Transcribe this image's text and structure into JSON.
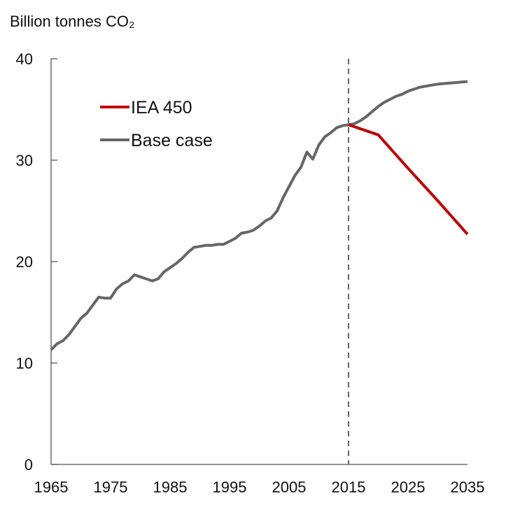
{
  "chart_data": {
    "type": "line",
    "title": "",
    "ylabel": "Billion tonnes CO₂",
    "xlabel": "",
    "xlim": [
      1965,
      2035
    ],
    "ylim": [
      0,
      40
    ],
    "xticks": [
      "1965",
      "1975",
      "1985",
      "1995",
      "2005",
      "2015",
      "2025",
      "2035"
    ],
    "yticks": [
      "0",
      "10",
      "20",
      "30",
      "40"
    ],
    "grid": false,
    "legend_position": "top-left",
    "vertical_reference_line": 2015,
    "series": [
      {
        "name": "IEA 450",
        "color": "#c00000",
        "points": [
          [
            2015,
            33.5
          ],
          [
            2020,
            32.5
          ],
          [
            2025,
            29.2
          ],
          [
            2030,
            26.0
          ],
          [
            2035,
            22.7
          ]
        ]
      },
      {
        "name": "Base case",
        "color": "#666666",
        "points": [
          [
            1965,
            11.3
          ],
          [
            1966,
            11.9
          ],
          [
            1967,
            12.2
          ],
          [
            1968,
            12.8
          ],
          [
            1969,
            13.6
          ],
          [
            1970,
            14.4
          ],
          [
            1971,
            14.9
          ],
          [
            1972,
            15.7
          ],
          [
            1973,
            16.5
          ],
          [
            1974,
            16.4
          ],
          [
            1975,
            16.4
          ],
          [
            1976,
            17.3
          ],
          [
            1977,
            17.8
          ],
          [
            1978,
            18.1
          ],
          [
            1979,
            18.7
          ],
          [
            1980,
            18.5
          ],
          [
            1981,
            18.3
          ],
          [
            1982,
            18.1
          ],
          [
            1983,
            18.3
          ],
          [
            1984,
            19.0
          ],
          [
            1985,
            19.4
          ],
          [
            1986,
            19.8
          ],
          [
            1987,
            20.3
          ],
          [
            1988,
            20.9
          ],
          [
            1989,
            21.4
          ],
          [
            1990,
            21.5
          ],
          [
            1991,
            21.6
          ],
          [
            1992,
            21.6
          ],
          [
            1993,
            21.7
          ],
          [
            1994,
            21.7
          ],
          [
            1995,
            22.0
          ],
          [
            1996,
            22.3
          ],
          [
            1997,
            22.8
          ],
          [
            1998,
            22.9
          ],
          [
            1999,
            23.1
          ],
          [
            2000,
            23.5
          ],
          [
            2001,
            24.0
          ],
          [
            2002,
            24.3
          ],
          [
            2003,
            25.0
          ],
          [
            2004,
            26.3
          ],
          [
            2005,
            27.4
          ],
          [
            2006,
            28.5
          ],
          [
            2007,
            29.3
          ],
          [
            2008,
            30.8
          ],
          [
            2009,
            30.1
          ],
          [
            2010,
            31.5
          ],
          [
            2011,
            32.3
          ],
          [
            2012,
            32.7
          ],
          [
            2013,
            33.2
          ],
          [
            2014,
            33.4
          ],
          [
            2015,
            33.5
          ],
          [
            2016,
            33.6
          ],
          [
            2017,
            33.9
          ],
          [
            2018,
            34.3
          ],
          [
            2019,
            34.8
          ],
          [
            2020,
            35.3
          ],
          [
            2021,
            35.7
          ],
          [
            2022,
            36.0
          ],
          [
            2023,
            36.3
          ],
          [
            2024,
            36.5
          ],
          [
            2025,
            36.8
          ],
          [
            2026,
            37.0
          ],
          [
            2027,
            37.2
          ],
          [
            2028,
            37.3
          ],
          [
            2029,
            37.4
          ],
          [
            2030,
            37.5
          ],
          [
            2031,
            37.55
          ],
          [
            2032,
            37.6
          ],
          [
            2033,
            37.65
          ],
          [
            2034,
            37.7
          ],
          [
            2035,
            37.75
          ]
        ]
      }
    ]
  }
}
